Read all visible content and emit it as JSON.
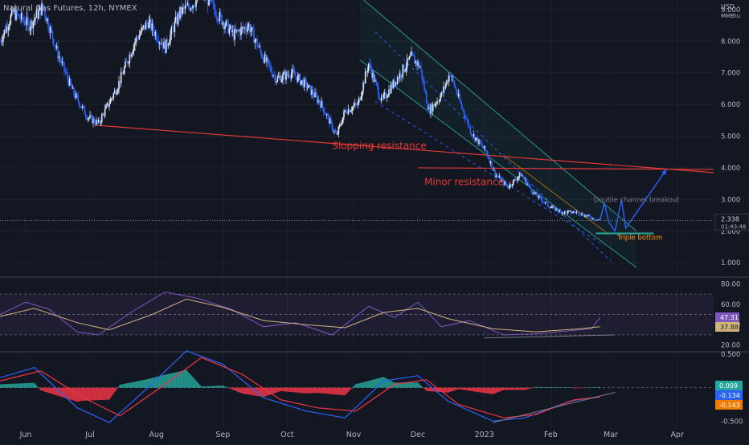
{
  "header": {
    "symbol_line": "Natural Gas Futures, 12h, NYMEX"
  },
  "price_scale": {
    "currency": "USD",
    "unit": "MMBtu"
  },
  "colors": {
    "bg": "#131722",
    "up": "#e6ebf3",
    "down": "#2962ff",
    "grid": "#1e222d",
    "axis_text": "#b2b5be",
    "red_line": "#e53935",
    "channel": "#26a69a",
    "target": "#2962ff",
    "rsi": "#7e57c2",
    "rsi_ma": "#d1b47c",
    "macd": "#2962ff",
    "signal": "#f23645",
    "hist_up": "#26a69a",
    "hist_down": "#f23645"
  },
  "x_axis": {
    "labels": [
      {
        "text": "Jun",
        "date": "2022-06-01"
      },
      {
        "text": "Jul",
        "date": "2022-07-01"
      },
      {
        "text": "Aug",
        "date": "2022-08-01"
      },
      {
        "text": "Sep",
        "date": "2022-09-01"
      },
      {
        "text": "Oct",
        "date": "2022-10-01"
      },
      {
        "text": "Nov",
        "date": "2022-11-01"
      },
      {
        "text": "Dec",
        "date": "2022-12-01"
      },
      {
        "text": "2023",
        "date": "2023-01-01"
      },
      {
        "text": "Feb",
        "date": "2023-02-01"
      },
      {
        "text": "Mar",
        "date": "2023-03-01"
      },
      {
        "text": "Apr",
        "date": "2023-04-01"
      }
    ],
    "start": "2022-05-20",
    "end": "2023-04-18"
  },
  "chart_data": [
    {
      "type": "line",
      "name": "Natural Gas Futures, 12h, NYMEX",
      "ylim": [
        0.6,
        9.3
      ],
      "y_ticks": [
        1,
        2,
        3,
        4,
        5,
        6,
        7,
        8,
        9
      ],
      "y_tick_labels": [
        "1.000",
        "2.000",
        "3.000",
        "4.000",
        "5.000",
        "6.000",
        "7.000",
        "8.000",
        "9.000"
      ],
      "last_price": {
        "value": 2.338,
        "label": "2.338",
        "countdown": "01:43:48"
      },
      "price_path": [
        [
          "2022-05-20",
          8.0
        ],
        [
          "2022-05-26",
          8.9
        ],
        [
          "2022-06-03",
          8.5
        ],
        [
          "2022-06-09",
          9.1
        ],
        [
          "2022-06-16",
          7.6
        ],
        [
          "2022-06-23",
          6.4
        ],
        [
          "2022-06-30",
          5.6
        ],
        [
          "2022-07-05",
          5.4
        ],
        [
          "2022-07-14",
          6.6
        ],
        [
          "2022-07-22",
          8.0
        ],
        [
          "2022-07-28",
          8.6
        ],
        [
          "2022-08-05",
          7.8
        ],
        [
          "2022-08-12",
          8.9
        ],
        [
          "2022-08-18",
          9.2
        ],
        [
          "2022-08-23",
          9.5
        ],
        [
          "2022-08-30",
          8.8
        ],
        [
          "2022-09-06",
          8.2
        ],
        [
          "2022-09-13",
          8.5
        ],
        [
          "2022-09-19",
          7.6
        ],
        [
          "2022-09-26",
          6.8
        ],
        [
          "2022-10-03",
          7.0
        ],
        [
          "2022-10-10",
          6.6
        ],
        [
          "2022-10-17",
          6.0
        ],
        [
          "2022-10-24",
          5.0
        ],
        [
          "2022-10-28",
          5.8
        ],
        [
          "2022-11-03",
          6.0
        ],
        [
          "2022-11-08",
          7.3
        ],
        [
          "2022-11-14",
          6.1
        ],
        [
          "2022-11-22",
          6.9
        ],
        [
          "2022-11-28",
          7.5
        ],
        [
          "2022-12-02",
          7.2
        ],
        [
          "2022-12-06",
          5.8
        ],
        [
          "2022-12-12",
          6.3
        ],
        [
          "2022-12-16",
          7.0
        ],
        [
          "2022-12-21",
          6.0
        ],
        [
          "2022-12-26",
          5.1
        ],
        [
          "2023-01-02",
          4.5
        ],
        [
          "2023-01-06",
          3.8
        ],
        [
          "2023-01-12",
          3.4
        ],
        [
          "2023-01-18",
          3.8
        ],
        [
          "2023-01-24",
          3.2
        ],
        [
          "2023-01-31",
          2.8
        ],
        [
          "2023-02-06",
          2.6
        ],
        [
          "2023-02-13",
          2.6
        ],
        [
          "2023-02-21",
          2.4
        ],
        [
          "2023-02-24",
          2.34
        ]
      ],
      "trendlines": [
        {
          "name": "sloping-resistance",
          "label": "Slopping resistance",
          "points": [
            [
              "2022-07-03",
              5.35
            ],
            [
              "2023-04-18",
              3.85
            ]
          ]
        },
        {
          "name": "minor-resistance",
          "label": "Minor resistance",
          "points": [
            [
              "2022-12-01",
              4.0
            ],
            [
              "2023-04-18",
              3.95
            ]
          ]
        }
      ],
      "channel_lines": [
        {
          "points": [
            [
              "2022-11-04",
              9.4
            ],
            [
              "2023-03-13",
              2.0
            ]
          ]
        },
        {
          "points": [
            [
              "2022-11-04",
              7.4
            ],
            [
              "2023-03-13",
              0.85
            ]
          ]
        },
        {
          "points": [
            [
              "2022-11-11",
              8.3
            ],
            [
              "2023-03-01",
              1.05
            ]
          ],
          "dashed": true
        },
        {
          "points": [
            [
              "2022-11-11",
              6.1
            ],
            [
              "2023-02-26",
              1.55
            ]
          ],
          "dashed": true
        }
      ],
      "inner_channel": [
        [
          "2023-01-10",
          4.4
        ],
        [
          "2023-02-28",
          1.9
        ]
      ],
      "projection_path": [
        [
          "2023-02-24",
          2.34
        ],
        [
          "2023-02-26",
          2.9
        ],
        [
          "2023-02-28",
          2.3
        ],
        [
          "2023-03-03",
          2.0
        ],
        [
          "2023-03-06",
          3.0
        ],
        [
          "2023-03-08",
          2.1
        ],
        [
          "2023-03-27",
          3.95
        ]
      ],
      "support_level": {
        "from": "2023-02-22",
        "to": "2023-03-21",
        "value": 1.93
      },
      "annotations": [
        {
          "text": "Slopping resistance",
          "date": "2022-10-22",
          "value": 4.6,
          "color": "#e53935"
        },
        {
          "text": "Minor resistance",
          "date": "2022-12-04",
          "value": 3.45,
          "color": "#e53935"
        },
        {
          "text": "Double channel breakout",
          "date": "2023-02-21",
          "value": 2.92,
          "color": "#787b86"
        },
        {
          "text": "Triple bottom",
          "date": "2023-03-04",
          "value": 1.73,
          "color": "#ff9800"
        }
      ]
    },
    {
      "type": "line",
      "name": "RSI",
      "ylim": [
        15,
        85
      ],
      "y_ticks": [
        20,
        40,
        60,
        80
      ],
      "y_tick_labels": [
        "20.00",
        "40.00",
        "60.00",
        "80.00"
      ],
      "bands": {
        "upper": 70,
        "middle": 50,
        "lower": 30
      },
      "last_values": [
        {
          "label": "47.31",
          "value": 47.31
        },
        {
          "label": "37.88",
          "value": 37.88
        }
      ],
      "rsi_path": [
        [
          "2022-05-20",
          50
        ],
        [
          "2022-06-01",
          62
        ],
        [
          "2022-06-12",
          55
        ],
        [
          "2022-06-25",
          33
        ],
        [
          "2022-07-05",
          30
        ],
        [
          "2022-07-20",
          52
        ],
        [
          "2022-08-05",
          72
        ],
        [
          "2022-08-20",
          66
        ],
        [
          "2022-09-05",
          55
        ],
        [
          "2022-09-20",
          38
        ],
        [
          "2022-10-05",
          42
        ],
        [
          "2022-10-22",
          30
        ],
        [
          "2022-11-08",
          58
        ],
        [
          "2022-11-20",
          47
        ],
        [
          "2022-12-01",
          62
        ],
        [
          "2022-12-12",
          38
        ],
        [
          "2022-12-25",
          44
        ],
        [
          "2023-01-10",
          30
        ],
        [
          "2023-01-25",
          31
        ],
        [
          "2023-02-10",
          34
        ],
        [
          "2023-02-20",
          36
        ],
        [
          "2023-02-24",
          47
        ]
      ],
      "ma_path": [
        [
          "2022-05-20",
          48
        ],
        [
          "2022-06-05",
          56
        ],
        [
          "2022-06-25",
          42
        ],
        [
          "2022-07-10",
          35
        ],
        [
          "2022-07-30",
          50
        ],
        [
          "2022-08-15",
          65
        ],
        [
          "2022-09-01",
          57
        ],
        [
          "2022-09-20",
          44
        ],
        [
          "2022-10-10",
          40
        ],
        [
          "2022-10-28",
          37
        ],
        [
          "2022-11-15",
          52
        ],
        [
          "2022-12-01",
          56
        ],
        [
          "2022-12-15",
          46
        ],
        [
          "2023-01-05",
          36
        ],
        [
          "2023-01-25",
          33
        ],
        [
          "2023-02-15",
          36
        ],
        [
          "2023-02-24",
          38
        ]
      ],
      "trendline": [
        [
          "2023-01-01",
          27
        ],
        [
          "2023-03-03",
          30
        ]
      ]
    },
    {
      "type": "bar",
      "name": "MACD",
      "ylim": [
        -0.58,
        0.5
      ],
      "y_ticks": [
        -0.5,
        0,
        0.5
      ],
      "y_tick_labels": [
        "-0.500",
        "0.000",
        "0.500"
      ],
      "last_values": [
        {
          "label": "0.009",
          "value": 0.009
        },
        {
          "label": "-0.134",
          "value": -0.134
        },
        {
          "label": "-0.143",
          "value": -0.143
        }
      ],
      "macd_path": [
        [
          "2022-05-20",
          0.15
        ],
        [
          "2022-06-05",
          0.3
        ],
        [
          "2022-06-25",
          -0.3
        ],
        [
          "2022-07-10",
          -0.52
        ],
        [
          "2022-07-28",
          0.0
        ],
        [
          "2022-08-15",
          0.55
        ],
        [
          "2022-09-01",
          0.35
        ],
        [
          "2022-09-20",
          -0.15
        ],
        [
          "2022-10-10",
          -0.35
        ],
        [
          "2022-10-28",
          -0.45
        ],
        [
          "2022-11-15",
          0.1
        ],
        [
          "2022-12-01",
          0.18
        ],
        [
          "2022-12-15",
          -0.2
        ],
        [
          "2023-01-05",
          -0.5
        ],
        [
          "2023-01-20",
          -0.45
        ],
        [
          "2023-02-10",
          -0.2
        ],
        [
          "2023-02-24",
          -0.13
        ]
      ],
      "signal_path": [
        [
          "2022-05-20",
          0.1
        ],
        [
          "2022-06-08",
          0.25
        ],
        [
          "2022-06-28",
          -0.15
        ],
        [
          "2022-07-15",
          -0.42
        ],
        [
          "2022-08-05",
          0.05
        ],
        [
          "2022-08-22",
          0.45
        ],
        [
          "2022-09-10",
          0.2
        ],
        [
          "2022-09-28",
          -0.18
        ],
        [
          "2022-10-15",
          -0.3
        ],
        [
          "2022-11-02",
          -0.35
        ],
        [
          "2022-11-20",
          0.05
        ],
        [
          "2022-12-05",
          0.12
        ],
        [
          "2022-12-20",
          -0.25
        ],
        [
          "2023-01-10",
          -0.45
        ],
        [
          "2023-01-25",
          -0.4
        ],
        [
          "2023-02-12",
          -0.18
        ],
        [
          "2023-02-24",
          -0.14
        ]
      ],
      "trendline": [
        [
          "2023-01-05",
          -0.52
        ],
        [
          "2023-03-03",
          -0.07
        ]
      ]
    }
  ]
}
